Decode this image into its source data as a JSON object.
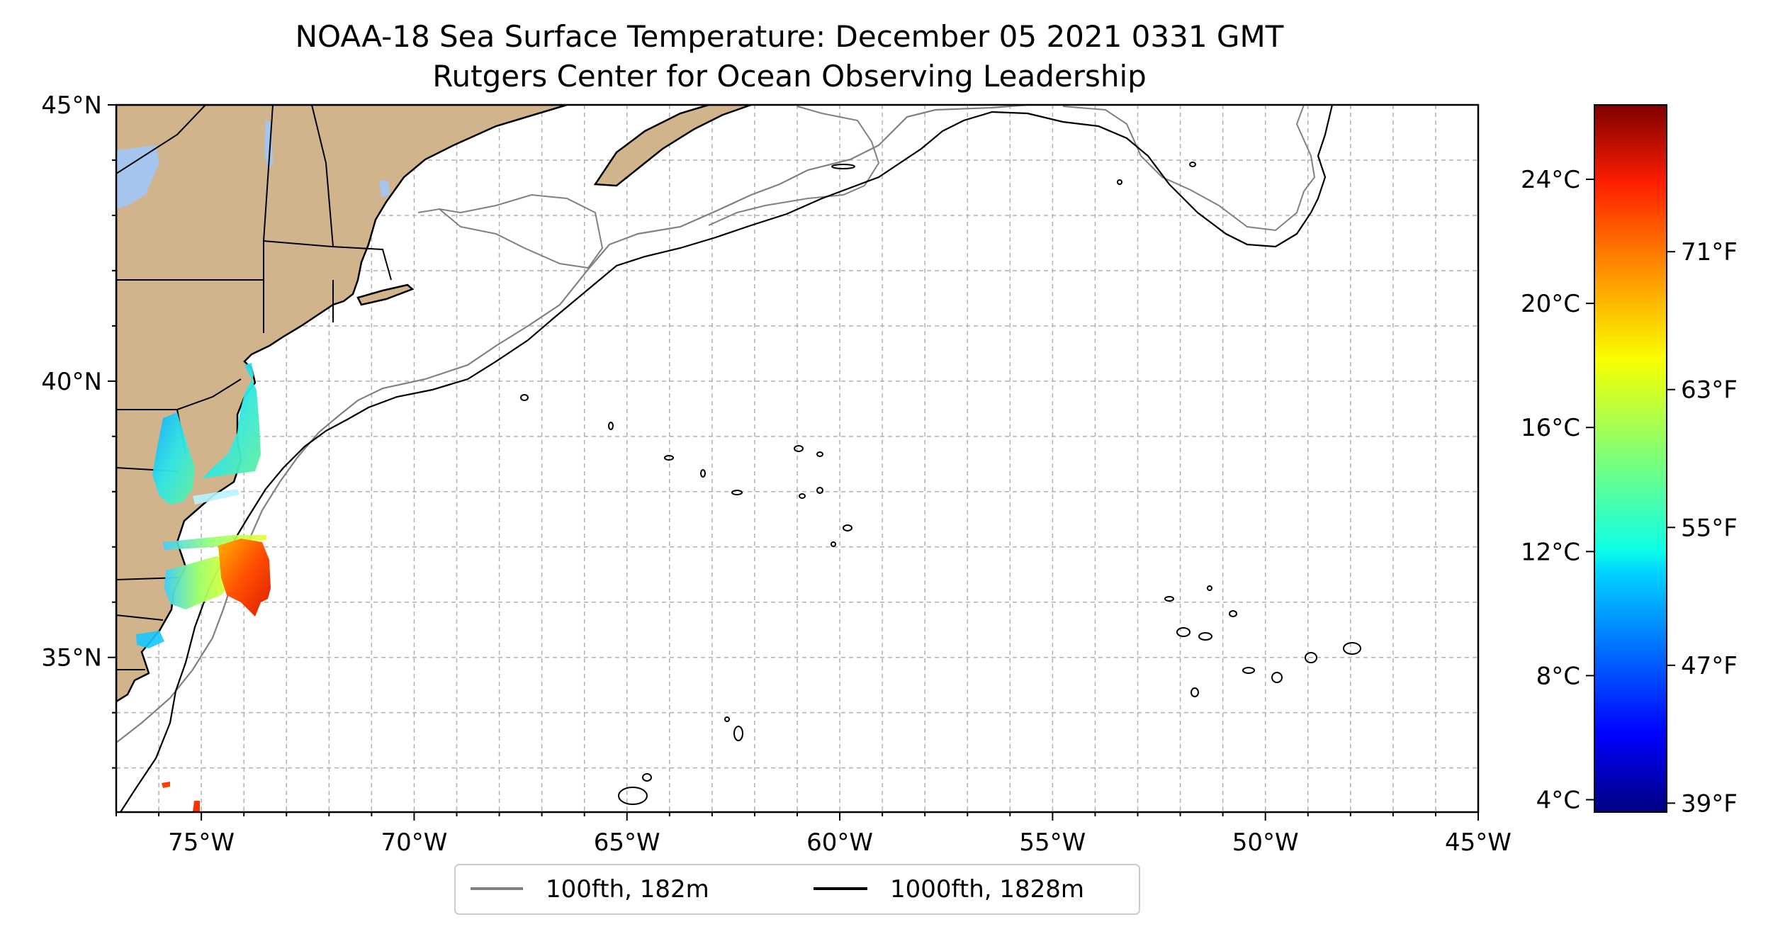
{
  "title": {
    "line1": "NOAA-18 Sea Surface Temperature: December 05 2021 0331 GMT",
    "line2": "Rutgers Center for Ocean Observing Leadership"
  },
  "map": {
    "lon_range": [
      -77,
      -45
    ],
    "lat_range": [
      32.2,
      45
    ],
    "x_ticks": [
      {
        "value": -75,
        "label": "75°W"
      },
      {
        "value": -70,
        "label": "70°W"
      },
      {
        "value": -65,
        "label": "65°W"
      },
      {
        "value": -60,
        "label": "60°W"
      },
      {
        "value": -55,
        "label": "55°W"
      },
      {
        "value": -50,
        "label": "50°W"
      },
      {
        "value": -45,
        "label": "45°W"
      }
    ],
    "y_ticks": [
      {
        "value": 45,
        "label": "45°N"
      },
      {
        "value": 40,
        "label": "40°N"
      },
      {
        "value": 35,
        "label": "35°N"
      }
    ],
    "grid": true,
    "grid_step_deg": 1,
    "colors": {
      "land": "#d2b48c",
      "lakes": "#a6c5ee",
      "isobath_100": "#808080",
      "isobath_1000": "#000000",
      "grid": "#b0b0b0"
    }
  },
  "legend": {
    "placement": "bottom-center",
    "items": [
      {
        "label": "100fth, 182m",
        "color": "#808080"
      },
      {
        "label": "1000fth, 1828m",
        "color": "#000000"
      }
    ]
  },
  "colorbar": {
    "range_c": [
      3.6,
      26.4
    ],
    "celsius_ticks": [
      {
        "value": 4,
        "label": "4°C"
      },
      {
        "value": 8,
        "label": "8°C"
      },
      {
        "value": 12,
        "label": "12°C"
      },
      {
        "value": 16,
        "label": "16°C"
      },
      {
        "value": 20,
        "label": "20°C"
      },
      {
        "value": 24,
        "label": "24°C"
      }
    ],
    "fahrenheit_ticks": [
      {
        "value": 39,
        "label": "39°F"
      },
      {
        "value": 47,
        "label": "47°F"
      },
      {
        "value": 55,
        "label": "55°F"
      },
      {
        "value": 63,
        "label": "63°F"
      },
      {
        "value": 71,
        "label": "71°F"
      }
    ],
    "colormap": [
      "#00007f",
      "#0000ff",
      "#007fff",
      "#00ffff",
      "#7fff7f",
      "#ffff00",
      "#ff7f00",
      "#ff0000",
      "#7f0000"
    ]
  }
}
